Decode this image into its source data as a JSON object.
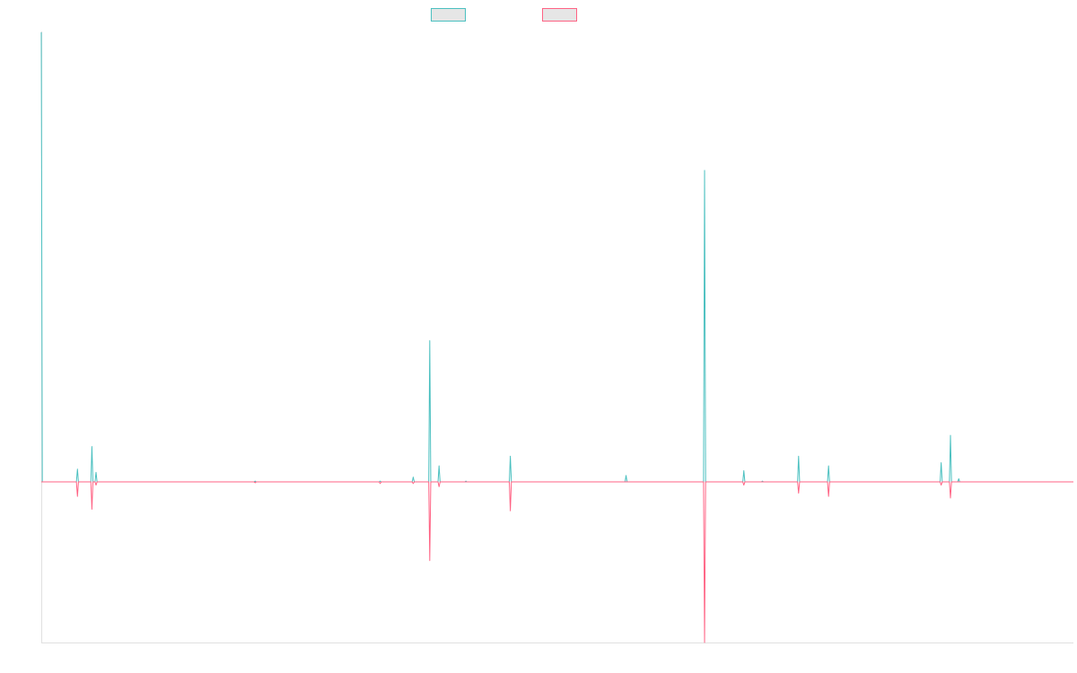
{
  "chart_data": {
    "type": "line",
    "title": "",
    "xlabel": "",
    "ylabel": "",
    "legend_position": "top-center",
    "grid": false,
    "ylim": [
      -100,
      280
    ],
    "x_count": 1000,
    "series": [
      {
        "name": "",
        "color": "#4bc0c0",
        "points": [
          [
            0,
            280
          ],
          [
            1,
            0
          ],
          [
            35,
            8
          ],
          [
            36,
            0
          ],
          [
            49,
            22
          ],
          [
            50,
            0
          ],
          [
            53,
            6
          ],
          [
            54,
            0
          ],
          [
            207,
            0.5
          ],
          [
            208,
            0
          ],
          [
            328,
            0.5
          ],
          [
            329,
            0
          ],
          [
            360,
            3
          ],
          [
            361,
            0
          ],
          [
            376,
            88
          ],
          [
            377,
            0
          ],
          [
            385,
            10
          ],
          [
            386,
            0
          ],
          [
            411,
            0.5
          ],
          [
            412,
            0
          ],
          [
            454,
            16
          ],
          [
            455,
            0
          ],
          [
            566,
            4
          ],
          [
            567,
            0
          ],
          [
            642,
            194
          ],
          [
            643,
            0
          ],
          [
            680,
            7
          ],
          [
            681,
            0
          ],
          [
            698,
            0.5
          ],
          [
            699,
            0
          ],
          [
            733,
            16
          ],
          [
            734,
            0
          ],
          [
            762,
            10
          ],
          [
            763,
            0
          ],
          [
            871,
            12
          ],
          [
            872,
            0
          ],
          [
            880,
            29
          ],
          [
            881,
            0
          ],
          [
            888,
            2
          ],
          [
            889,
            0
          ]
        ]
      },
      {
        "name": "",
        "color": "#ff6384",
        "points": [
          [
            35,
            -9
          ],
          [
            36,
            0
          ],
          [
            49,
            -17
          ],
          [
            50,
            0
          ],
          [
            53,
            -2
          ],
          [
            54,
            0
          ],
          [
            207,
            -0.5
          ],
          [
            208,
            0
          ],
          [
            328,
            -1
          ],
          [
            329,
            0
          ],
          [
            360,
            -1
          ],
          [
            361,
            0
          ],
          [
            376,
            -49
          ],
          [
            377,
            0
          ],
          [
            385,
            -3
          ],
          [
            386,
            0
          ],
          [
            454,
            -18
          ],
          [
            455,
            0
          ],
          [
            642,
            -100
          ],
          [
            643,
            0
          ],
          [
            680,
            -2
          ],
          [
            681,
            0
          ],
          [
            733,
            -7
          ],
          [
            734,
            0
          ],
          [
            762,
            -9
          ],
          [
            763,
            0
          ],
          [
            871,
            -2
          ],
          [
            872,
            0
          ],
          [
            880,
            -10
          ],
          [
            881,
            0
          ]
        ]
      }
    ]
  }
}
